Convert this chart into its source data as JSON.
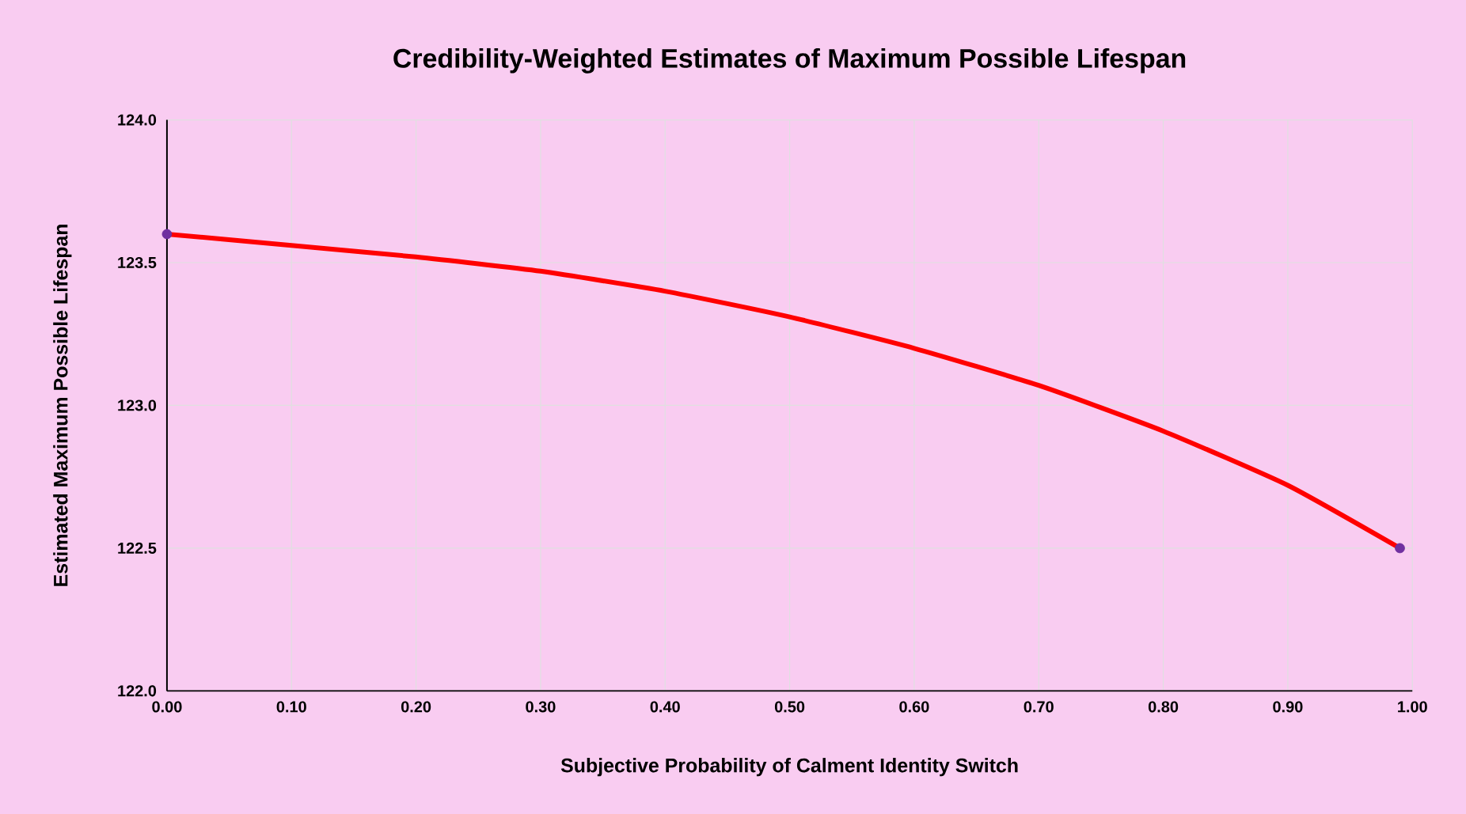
{
  "chart_data": {
    "type": "line",
    "title": "Credibility-Weighted Estimates of Maximum Possible Lifespan",
    "xlabel": "Subjective Probability of Calment Identity Switch",
    "ylabel": "Estimated Maximum Possible Lifespan",
    "xlim": [
      0,
      1
    ],
    "ylim": [
      122,
      124
    ],
    "xticks": [
      {
        "value": 0,
        "label": "0.00"
      },
      {
        "value": 0.1,
        "label": "0.10"
      },
      {
        "value": 0.2,
        "label": "0.20"
      },
      {
        "value": 0.3,
        "label": "0.30"
      },
      {
        "value": 0.4,
        "label": "0.40"
      },
      {
        "value": 0.5,
        "label": "0.50"
      },
      {
        "value": 0.6,
        "label": "0.60"
      },
      {
        "value": 0.7,
        "label": "0.70"
      },
      {
        "value": 0.8,
        "label": "0.80"
      },
      {
        "value": 0.9,
        "label": "0.90"
      },
      {
        "value": 1,
        "label": "1.00"
      }
    ],
    "yticks": [
      {
        "value": 122,
        "label": "122.0"
      },
      {
        "value": 122.5,
        "label": "122.5"
      },
      {
        "value": 123,
        "label": "123.0"
      },
      {
        "value": 123.5,
        "label": "123.5"
      },
      {
        "value": 124,
        "label": "124.0"
      }
    ],
    "grid": true,
    "series": [
      {
        "color": "#ff0000",
        "marker": "none",
        "x": [
          0,
          0.1,
          0.2,
          0.3,
          0.4,
          0.5,
          0.6,
          0.7,
          0.8,
          0.9,
          0.99
        ],
        "values": [
          123.6,
          123.56,
          123.52,
          123.47,
          123.4,
          123.31,
          123.2,
          123.07,
          122.91,
          122.72,
          122.5
        ]
      },
      {
        "type": "scatter",
        "color": "#7030a0",
        "marker": "circle",
        "x": [
          0,
          0.99
        ],
        "values": [
          123.6,
          122.5
        ]
      }
    ]
  }
}
